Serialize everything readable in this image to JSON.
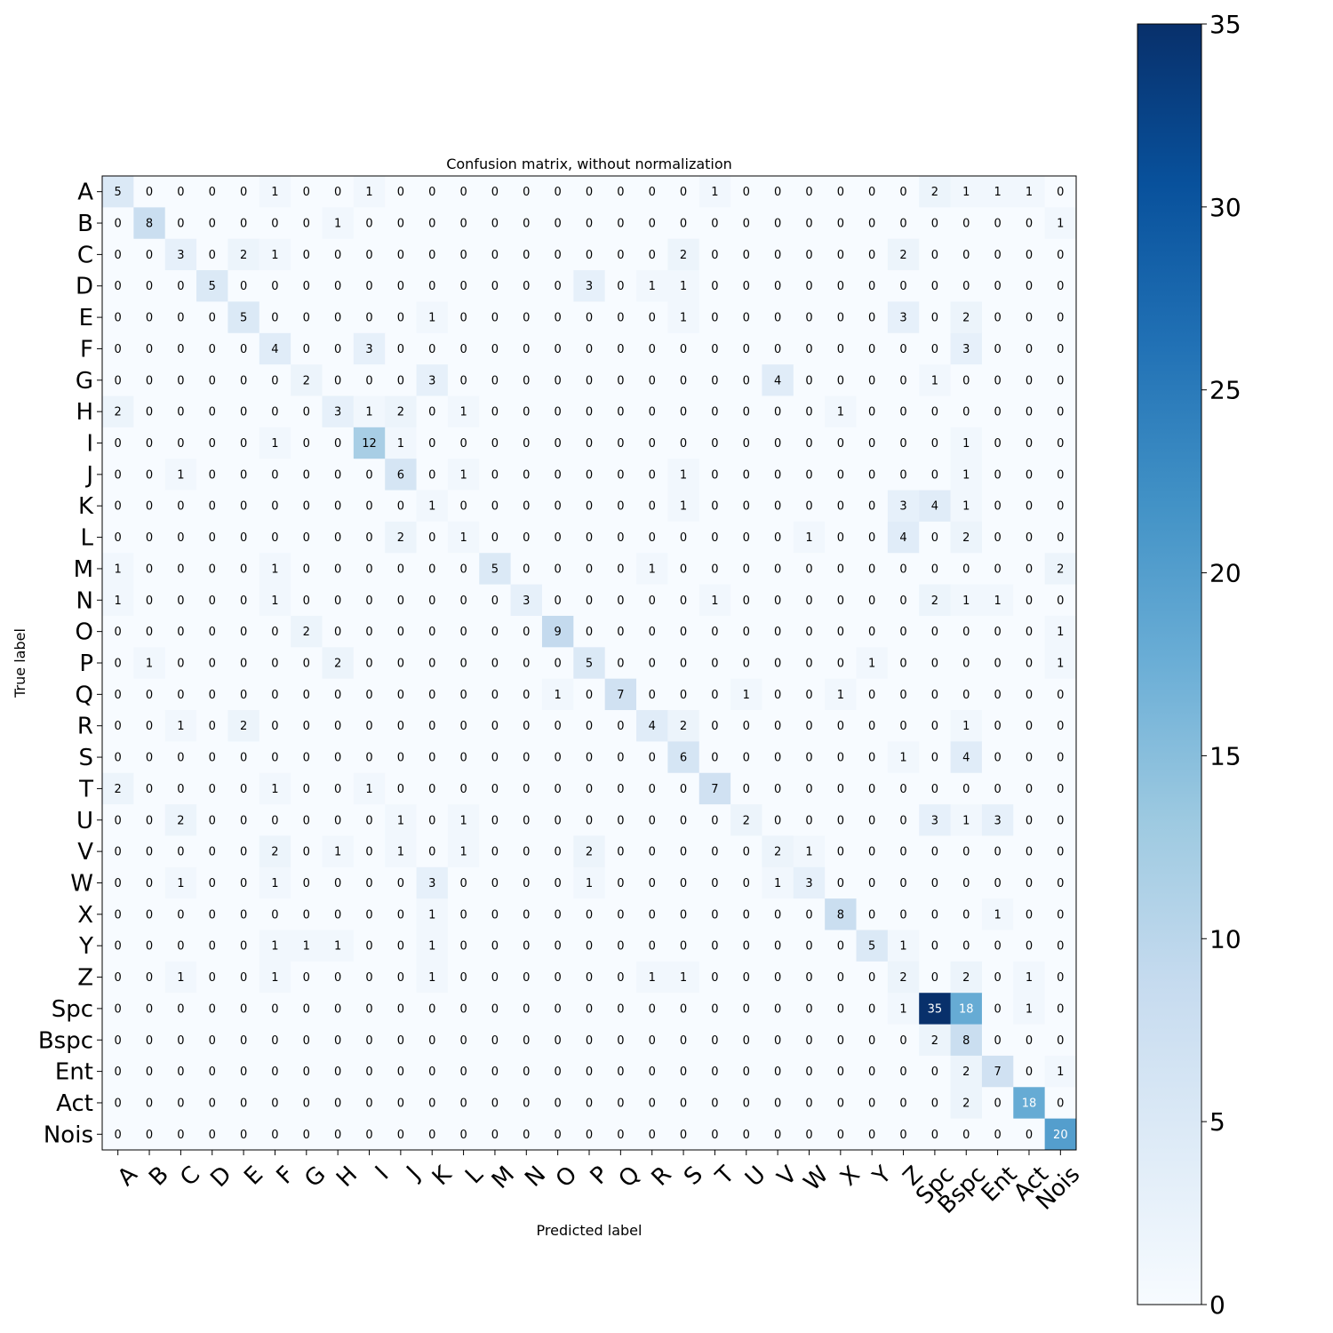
{
  "chart_data": {
    "type": "heatmap",
    "title": "Confusion matrix, without normalization",
    "xlabel": "Predicted label",
    "ylabel": "True label",
    "labels": [
      "A",
      "B",
      "C",
      "D",
      "E",
      "F",
      "G",
      "H",
      "I",
      "J",
      "K",
      "L",
      "M",
      "N",
      "O",
      "P",
      "Q",
      "R",
      "S",
      "T",
      "U",
      "V",
      "W",
      "X",
      "Y",
      "Z",
      "Spc",
      "Bspc",
      "Ent",
      "Act",
      "Nois"
    ],
    "matrix": [
      [
        5,
        0,
        0,
        0,
        0,
        1,
        0,
        0,
        1,
        0,
        0,
        0,
        0,
        0,
        0,
        0,
        0,
        0,
        0,
        1,
        0,
        0,
        0,
        0,
        0,
        0,
        2,
        1,
        1,
        1,
        0
      ],
      [
        0,
        8,
        0,
        0,
        0,
        0,
        0,
        1,
        0,
        0,
        0,
        0,
        0,
        0,
        0,
        0,
        0,
        0,
        0,
        0,
        0,
        0,
        0,
        0,
        0,
        0,
        0,
        0,
        0,
        0,
        1
      ],
      [
        0,
        0,
        3,
        0,
        2,
        1,
        0,
        0,
        0,
        0,
        0,
        0,
        0,
        0,
        0,
        0,
        0,
        0,
        2,
        0,
        0,
        0,
        0,
        0,
        0,
        2,
        0,
        0,
        0,
        0,
        0
      ],
      [
        0,
        0,
        0,
        5,
        0,
        0,
        0,
        0,
        0,
        0,
        0,
        0,
        0,
        0,
        0,
        3,
        0,
        1,
        1,
        0,
        0,
        0,
        0,
        0,
        0,
        0,
        0,
        0,
        0,
        0,
        0
      ],
      [
        0,
        0,
        0,
        0,
        5,
        0,
        0,
        0,
        0,
        0,
        1,
        0,
        0,
        0,
        0,
        0,
        0,
        0,
        1,
        0,
        0,
        0,
        0,
        0,
        0,
        3,
        0,
        2,
        0,
        0,
        0
      ],
      [
        0,
        0,
        0,
        0,
        0,
        4,
        0,
        0,
        3,
        0,
        0,
        0,
        0,
        0,
        0,
        0,
        0,
        0,
        0,
        0,
        0,
        0,
        0,
        0,
        0,
        0,
        0,
        3,
        0,
        0,
        0
      ],
      [
        0,
        0,
        0,
        0,
        0,
        0,
        2,
        0,
        0,
        0,
        3,
        0,
        0,
        0,
        0,
        0,
        0,
        0,
        0,
        0,
        0,
        4,
        0,
        0,
        0,
        0,
        1,
        0,
        0,
        0,
        0
      ],
      [
        2,
        0,
        0,
        0,
        0,
        0,
        0,
        3,
        1,
        2,
        0,
        1,
        0,
        0,
        0,
        0,
        0,
        0,
        0,
        0,
        0,
        0,
        0,
        1,
        0,
        0,
        0,
        0,
        0,
        0,
        0
      ],
      [
        0,
        0,
        0,
        0,
        0,
        1,
        0,
        0,
        12,
        1,
        0,
        0,
        0,
        0,
        0,
        0,
        0,
        0,
        0,
        0,
        0,
        0,
        0,
        0,
        0,
        0,
        0,
        1,
        0,
        0,
        0
      ],
      [
        0,
        0,
        1,
        0,
        0,
        0,
        0,
        0,
        0,
        6,
        0,
        1,
        0,
        0,
        0,
        0,
        0,
        0,
        1,
        0,
        0,
        0,
        0,
        0,
        0,
        0,
        0,
        1,
        0,
        0,
        0
      ],
      [
        0,
        0,
        0,
        0,
        0,
        0,
        0,
        0,
        0,
        0,
        1,
        0,
        0,
        0,
        0,
        0,
        0,
        0,
        1,
        0,
        0,
        0,
        0,
        0,
        0,
        3,
        4,
        1,
        0,
        0,
        0
      ],
      [
        0,
        0,
        0,
        0,
        0,
        0,
        0,
        0,
        0,
        2,
        0,
        1,
        0,
        0,
        0,
        0,
        0,
        0,
        0,
        0,
        0,
        0,
        1,
        0,
        0,
        4,
        0,
        2,
        0,
        0,
        0
      ],
      [
        1,
        0,
        0,
        0,
        0,
        1,
        0,
        0,
        0,
        0,
        0,
        0,
        5,
        0,
        0,
        0,
        0,
        1,
        0,
        0,
        0,
        0,
        0,
        0,
        0,
        0,
        0,
        0,
        0,
        0,
        2
      ],
      [
        1,
        0,
        0,
        0,
        0,
        1,
        0,
        0,
        0,
        0,
        0,
        0,
        0,
        3,
        0,
        0,
        0,
        0,
        0,
        1,
        0,
        0,
        0,
        0,
        0,
        0,
        2,
        1,
        1,
        0,
        0
      ],
      [
        0,
        0,
        0,
        0,
        0,
        0,
        2,
        0,
        0,
        0,
        0,
        0,
        0,
        0,
        9,
        0,
        0,
        0,
        0,
        0,
        0,
        0,
        0,
        0,
        0,
        0,
        0,
        0,
        0,
        0,
        1
      ],
      [
        0,
        1,
        0,
        0,
        0,
        0,
        0,
        2,
        0,
        0,
        0,
        0,
        0,
        0,
        0,
        5,
        0,
        0,
        0,
        0,
        0,
        0,
        0,
        0,
        1,
        0,
        0,
        0,
        0,
        0,
        1
      ],
      [
        0,
        0,
        0,
        0,
        0,
        0,
        0,
        0,
        0,
        0,
        0,
        0,
        0,
        0,
        1,
        0,
        7,
        0,
        0,
        0,
        1,
        0,
        0,
        1,
        0,
        0,
        0,
        0,
        0,
        0,
        0
      ],
      [
        0,
        0,
        1,
        0,
        2,
        0,
        0,
        0,
        0,
        0,
        0,
        0,
        0,
        0,
        0,
        0,
        0,
        4,
        2,
        0,
        0,
        0,
        0,
        0,
        0,
        0,
        0,
        1,
        0,
        0,
        0
      ],
      [
        0,
        0,
        0,
        0,
        0,
        0,
        0,
        0,
        0,
        0,
        0,
        0,
        0,
        0,
        0,
        0,
        0,
        0,
        6,
        0,
        0,
        0,
        0,
        0,
        0,
        1,
        0,
        4,
        0,
        0,
        0
      ],
      [
        2,
        0,
        0,
        0,
        0,
        1,
        0,
        0,
        1,
        0,
        0,
        0,
        0,
        0,
        0,
        0,
        0,
        0,
        0,
        7,
        0,
        0,
        0,
        0,
        0,
        0,
        0,
        0,
        0,
        0,
        0
      ],
      [
        0,
        0,
        2,
        0,
        0,
        0,
        0,
        0,
        0,
        1,
        0,
        1,
        0,
        0,
        0,
        0,
        0,
        0,
        0,
        0,
        2,
        0,
        0,
        0,
        0,
        0,
        3,
        1,
        3,
        0,
        0
      ],
      [
        0,
        0,
        0,
        0,
        0,
        2,
        0,
        1,
        0,
        1,
        0,
        1,
        0,
        0,
        0,
        2,
        0,
        0,
        0,
        0,
        0,
        2,
        1,
        0,
        0,
        0,
        0,
        0,
        0,
        0,
        0
      ],
      [
        0,
        0,
        1,
        0,
        0,
        1,
        0,
        0,
        0,
        0,
        3,
        0,
        0,
        0,
        0,
        1,
        0,
        0,
        0,
        0,
        0,
        1,
        3,
        0,
        0,
        0,
        0,
        0,
        0,
        0,
        0
      ],
      [
        0,
        0,
        0,
        0,
        0,
        0,
        0,
        0,
        0,
        0,
        1,
        0,
        0,
        0,
        0,
        0,
        0,
        0,
        0,
        0,
        0,
        0,
        0,
        8,
        0,
        0,
        0,
        0,
        1,
        0,
        0
      ],
      [
        0,
        0,
        0,
        0,
        0,
        1,
        1,
        1,
        0,
        0,
        1,
        0,
        0,
        0,
        0,
        0,
        0,
        0,
        0,
        0,
        0,
        0,
        0,
        0,
        5,
        1,
        0,
        0,
        0,
        0,
        0
      ],
      [
        0,
        0,
        1,
        0,
        0,
        1,
        0,
        0,
        0,
        0,
        1,
        0,
        0,
        0,
        0,
        0,
        0,
        1,
        1,
        0,
        0,
        0,
        0,
        0,
        0,
        2,
        0,
        2,
        0,
        1,
        0
      ],
      [
        0,
        0,
        0,
        0,
        0,
        0,
        0,
        0,
        0,
        0,
        0,
        0,
        0,
        0,
        0,
        0,
        0,
        0,
        0,
        0,
        0,
        0,
        0,
        0,
        0,
        1,
        35,
        18,
        0,
        1,
        0
      ],
      [
        0,
        0,
        0,
        0,
        0,
        0,
        0,
        0,
        0,
        0,
        0,
        0,
        0,
        0,
        0,
        0,
        0,
        0,
        0,
        0,
        0,
        0,
        0,
        0,
        0,
        0,
        2,
        8,
        0,
        0,
        0
      ],
      [
        0,
        0,
        0,
        0,
        0,
        0,
        0,
        0,
        0,
        0,
        0,
        0,
        0,
        0,
        0,
        0,
        0,
        0,
        0,
        0,
        0,
        0,
        0,
        0,
        0,
        0,
        0,
        2,
        7,
        0,
        1
      ],
      [
        0,
        0,
        0,
        0,
        0,
        0,
        0,
        0,
        0,
        0,
        0,
        0,
        0,
        0,
        0,
        0,
        0,
        0,
        0,
        0,
        0,
        0,
        0,
        0,
        0,
        0,
        0,
        2,
        0,
        18,
        0
      ],
      [
        0,
        0,
        0,
        0,
        0,
        0,
        0,
        0,
        0,
        0,
        0,
        0,
        0,
        0,
        0,
        0,
        0,
        0,
        0,
        0,
        0,
        0,
        0,
        0,
        0,
        0,
        0,
        0,
        0,
        0,
        20
      ]
    ],
    "colorbar": {
      "min": 0,
      "max": 35,
      "ticks": [
        0,
        5,
        10,
        15,
        20,
        25,
        30,
        35
      ],
      "colormap": "Blues"
    },
    "grid": false
  }
}
